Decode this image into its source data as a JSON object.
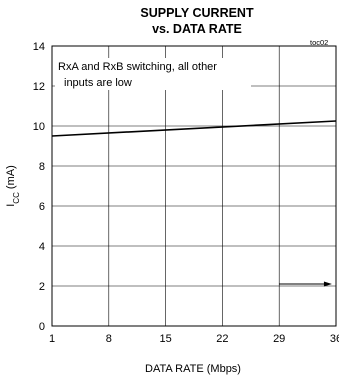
{
  "chart_data": {
    "type": "line",
    "title": "SUPPLY CURRENT",
    "subtitle": "vs. DATA RATE",
    "code": "toc02",
    "xlabel": "DATA RATE (Mbps)",
    "ylabel_main": "I",
    "ylabel_sub": "CC",
    "ylabel_unit": " (mA)",
    "xlim": [
      1,
      36
    ],
    "ylim": [
      0,
      14
    ],
    "x_ticks": [
      1,
      8,
      15,
      22,
      29,
      36
    ],
    "y_ticks": [
      0,
      2,
      4,
      6,
      8,
      10,
      12,
      14
    ],
    "x_tick_labels": [
      "1",
      "8",
      "15",
      "22",
      "29",
      "36"
    ],
    "y_tick_labels": [
      "0",
      "2",
      "4",
      "6",
      "8",
      "10",
      "12",
      "14"
    ],
    "grid": true,
    "series": [
      {
        "x": [
          1,
          36
        ],
        "y": [
          9.5,
          10.25
        ]
      }
    ],
    "annotation_lines": [
      "RxA and RxB switching, all other",
      "inputs are low"
    ],
    "arrow": {
      "x_start": 29,
      "x_end": 35.5,
      "y": 2.1
    }
  }
}
